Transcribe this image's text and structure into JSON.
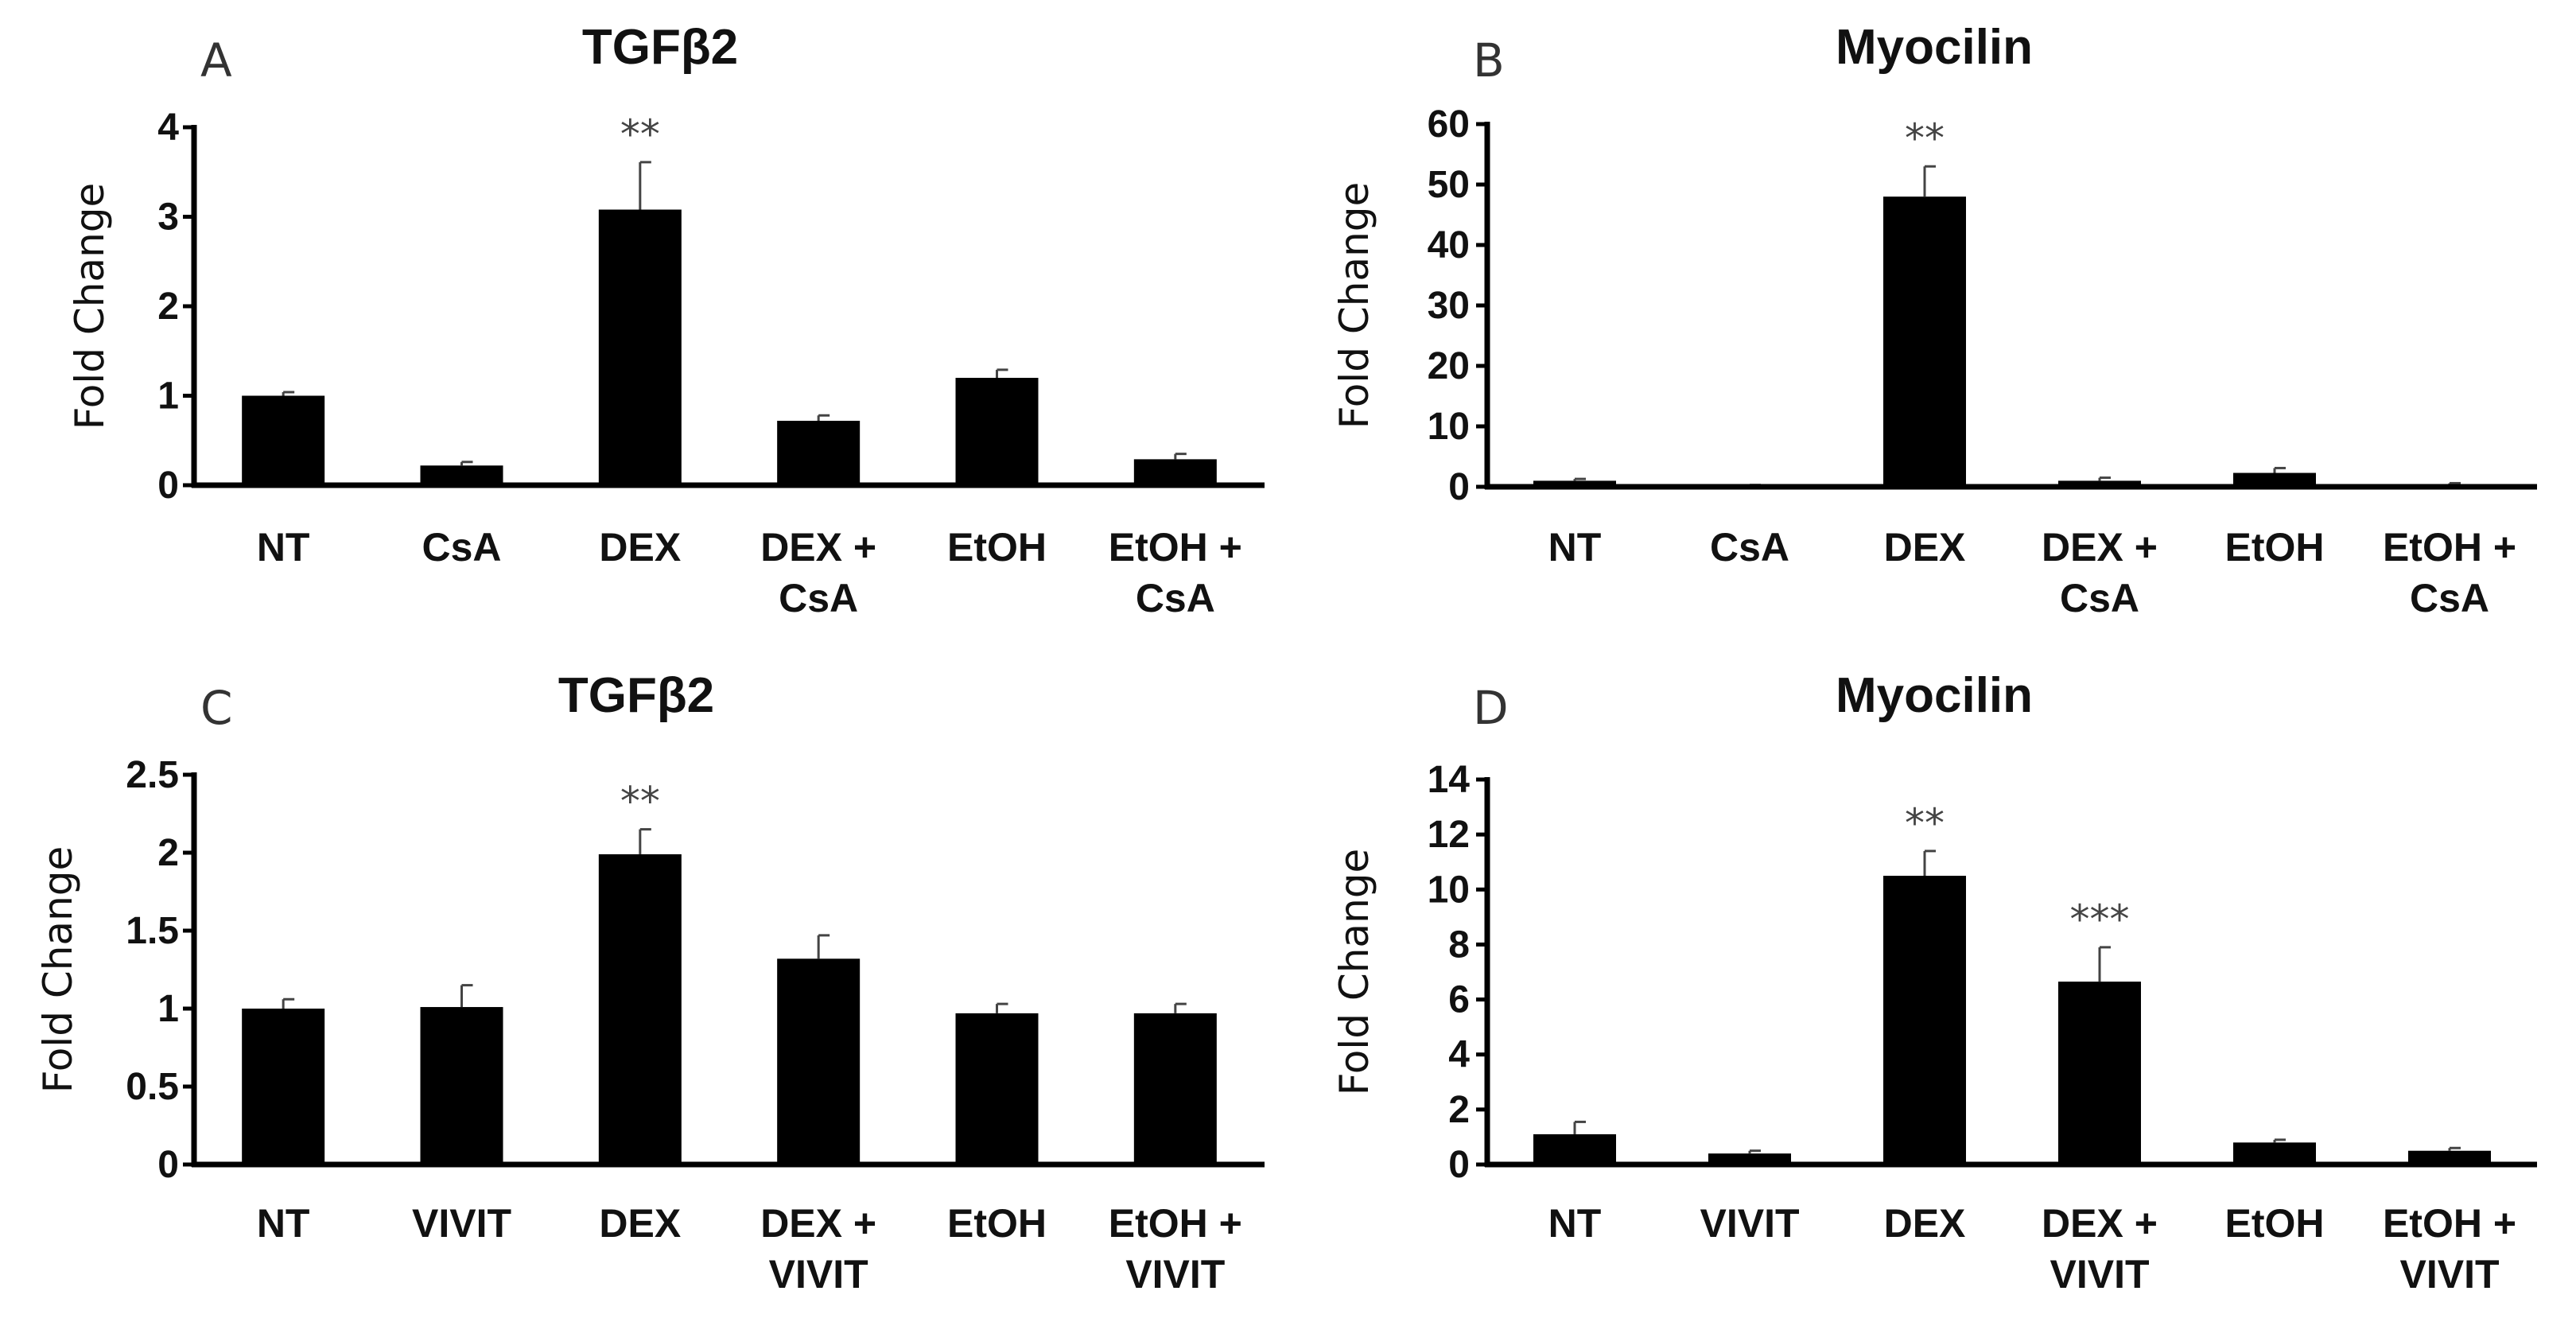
{
  "chart_data": [
    {
      "panel": "A",
      "type": "bar",
      "title": "TGFβ2",
      "ylabel": "Fold Change",
      "ylim": [
        0,
        4
      ],
      "yticks": [
        "0",
        "1",
        "2",
        "3",
        "4"
      ],
      "categories": [
        [
          "NT"
        ],
        [
          "CsA"
        ],
        [
          "DEX"
        ],
        [
          "DEX +",
          "CsA"
        ],
        [
          "EtOH"
        ],
        [
          "EtOH +",
          "CsA"
        ]
      ],
      "values": [
        1.0,
        0.22,
        3.08,
        0.72,
        1.2,
        0.29
      ],
      "errors": [
        0.04,
        0.04,
        0.53,
        0.06,
        0.09,
        0.06
      ],
      "significance": [
        "",
        "",
        "**",
        "",
        "",
        ""
      ]
    },
    {
      "panel": "B",
      "type": "bar",
      "title": "Myocilin",
      "ylabel": "Fold Change",
      "ylim": [
        0,
        60
      ],
      "yticks": [
        "0",
        "10",
        "20",
        "30",
        "40",
        "50",
        "60"
      ],
      "categories": [
        [
          "NT"
        ],
        [
          "CsA"
        ],
        [
          "DEX"
        ],
        [
          "DEX +",
          "CsA"
        ],
        [
          "EtOH"
        ],
        [
          "EtOH +",
          "CsA"
        ]
      ],
      "values": [
        1.0,
        0.2,
        48.0,
        1.0,
        2.3,
        0.4
      ],
      "errors": [
        0.3,
        0.1,
        5.0,
        0.5,
        0.8,
        0.2
      ],
      "significance": [
        "",
        "",
        "**",
        "",
        "",
        ""
      ]
    },
    {
      "panel": "C",
      "type": "bar",
      "title": "TGFβ2",
      "ylabel": "Fold Change",
      "ylim": [
        0,
        2.5
      ],
      "yticks": [
        "0",
        "0.5",
        "1",
        "1.5",
        "2",
        "2.5"
      ],
      "categories": [
        [
          "NT"
        ],
        [
          "VIVIT"
        ],
        [
          "DEX"
        ],
        [
          "DEX +",
          "VIVIT"
        ],
        [
          "EtOH"
        ],
        [
          "EtOH +",
          "VIVIT"
        ]
      ],
      "values": [
        1.0,
        1.01,
        1.99,
        1.32,
        0.97,
        0.97
      ],
      "errors": [
        0.06,
        0.14,
        0.16,
        0.15,
        0.06,
        0.06
      ],
      "significance": [
        "",
        "",
        "**",
        "",
        "",
        ""
      ]
    },
    {
      "panel": "D",
      "type": "bar",
      "title": "Myocilin",
      "ylabel": "Fold Change",
      "ylim": [
        0,
        14
      ],
      "yticks": [
        "0",
        "2",
        "4",
        "6",
        "8",
        "10",
        "12",
        "14"
      ],
      "categories": [
        [
          "NT"
        ],
        [
          "VIVIT"
        ],
        [
          "DEX"
        ],
        [
          "DEX +",
          "VIVIT"
        ],
        [
          "EtOH"
        ],
        [
          "EtOH +",
          "VIVIT"
        ]
      ],
      "values": [
        1.1,
        0.4,
        10.5,
        6.65,
        0.8,
        0.5
      ],
      "errors": [
        0.45,
        0.1,
        0.9,
        1.25,
        0.1,
        0.1
      ],
      "significance": [
        "",
        "",
        "**",
        "***",
        "",
        ""
      ]
    }
  ],
  "colors": {
    "bar": "#000000",
    "axis": "#000000",
    "text": "#111111",
    "sig": "#444444"
  }
}
